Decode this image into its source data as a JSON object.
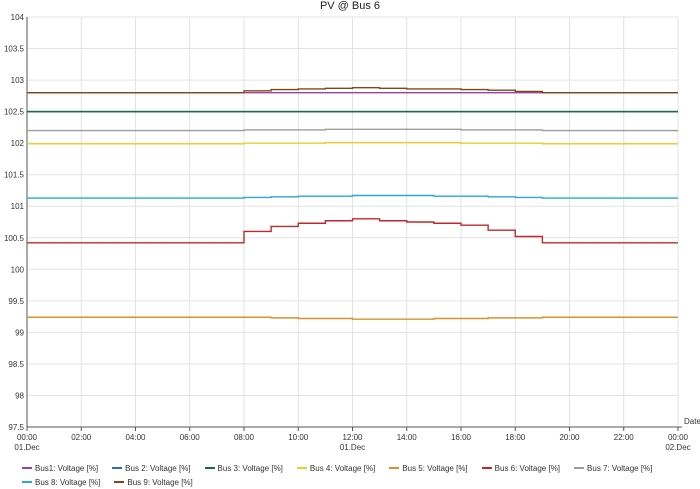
{
  "chart_data": {
    "type": "line",
    "title": "PV @ Bus 6",
    "xlabel": "Date",
    "ylabel": "",
    "ylim": [
      97.5,
      104
    ],
    "yticks": [
      97.5,
      98,
      98.5,
      99,
      99.5,
      100,
      100.5,
      101,
      101.5,
      102,
      102.5,
      103,
      103.5,
      104
    ],
    "xlim": [
      0,
      24
    ],
    "xticks": [
      {
        "x": 0,
        "time": "00:00",
        "date": "01.Dec"
      },
      {
        "x": 2,
        "time": "02:00",
        "date": ""
      },
      {
        "x": 4,
        "time": "04:00",
        "date": ""
      },
      {
        "x": 6,
        "time": "06:00",
        "date": ""
      },
      {
        "x": 8,
        "time": "08:00",
        "date": ""
      },
      {
        "x": 10,
        "time": "10:00",
        "date": ""
      },
      {
        "x": 12,
        "time": "12:00",
        "date": "01.Dec"
      },
      {
        "x": 14,
        "time": "14:00",
        "date": ""
      },
      {
        "x": 16,
        "time": "16:00",
        "date": ""
      },
      {
        "x": 18,
        "time": "18:00",
        "date": ""
      },
      {
        "x": 20,
        "time": "20:00",
        "date": ""
      },
      {
        "x": 22,
        "time": "22:00",
        "date": ""
      },
      {
        "x": 24,
        "time": "00:00",
        "date": "02.Dec"
      }
    ],
    "grid": true,
    "legend_position": "bottom",
    "x": [
      0,
      8,
      9,
      10,
      11,
      12,
      13,
      14,
      15,
      16,
      17,
      18,
      19,
      24
    ],
    "series": [
      {
        "name": "Bus1: Voltage [%]",
        "color": "#a33ea1",
        "values": [
          102.8,
          102.8,
          102.8,
          102.8,
          102.8,
          102.8,
          102.8,
          102.8,
          102.8,
          102.8,
          102.8,
          102.8,
          102.8,
          102.8
        ]
      },
      {
        "name": "Bus 2: Voltage [%]",
        "color": "#2f6fb0",
        "values": [
          102.5,
          102.5,
          102.5,
          102.5,
          102.5,
          102.5,
          102.5,
          102.5,
          102.5,
          102.5,
          102.5,
          102.5,
          102.5,
          102.5
        ]
      },
      {
        "name": "Bus 3: Voltage [%]",
        "color": "#1b6b4a",
        "values": [
          102.5,
          102.5,
          102.5,
          102.5,
          102.5,
          102.5,
          102.5,
          102.5,
          102.5,
          102.5,
          102.5,
          102.5,
          102.5,
          102.5
        ]
      },
      {
        "name": "Bus 4: Voltage [%]",
        "color": "#e6cf2a",
        "values": [
          101.99,
          102.0,
          102.0,
          102.0,
          102.01,
          102.01,
          102.01,
          102.01,
          102.01,
          102.0,
          102.0,
          102.0,
          101.99,
          101.99
        ]
      },
      {
        "name": "Bus 5: Voltage [%]",
        "color": "#d6932b",
        "values": [
          99.24,
          99.24,
          99.23,
          99.22,
          99.22,
          99.21,
          99.21,
          99.21,
          99.22,
          99.22,
          99.23,
          99.23,
          99.24,
          99.24
        ]
      },
      {
        "name": "Bus 6: Voltage [%]",
        "color": "#c0282d",
        "values": [
          100.42,
          100.6,
          100.68,
          100.73,
          100.77,
          100.8,
          100.77,
          100.75,
          100.73,
          100.7,
          100.62,
          100.52,
          100.42,
          100.42
        ]
      },
      {
        "name": "Bus 7: Voltage [%]",
        "color": "#9c9c9c",
        "values": [
          102.2,
          102.21,
          102.21,
          102.21,
          102.22,
          102.22,
          102.22,
          102.22,
          102.22,
          102.21,
          102.21,
          102.21,
          102.2,
          102.2
        ]
      },
      {
        "name": "Bus 8: Voltage [%]",
        "color": "#2aa6d9",
        "values": [
          101.13,
          101.14,
          101.15,
          101.16,
          101.16,
          101.17,
          101.17,
          101.17,
          101.16,
          101.16,
          101.15,
          101.14,
          101.13,
          101.13
        ]
      },
      {
        "name": "Bus 9: Voltage [%]",
        "color": "#7a4a1e",
        "values": [
          102.8,
          102.83,
          102.85,
          102.86,
          102.87,
          102.88,
          102.87,
          102.86,
          102.86,
          102.85,
          102.84,
          102.82,
          102.8,
          102.8
        ]
      }
    ]
  }
}
